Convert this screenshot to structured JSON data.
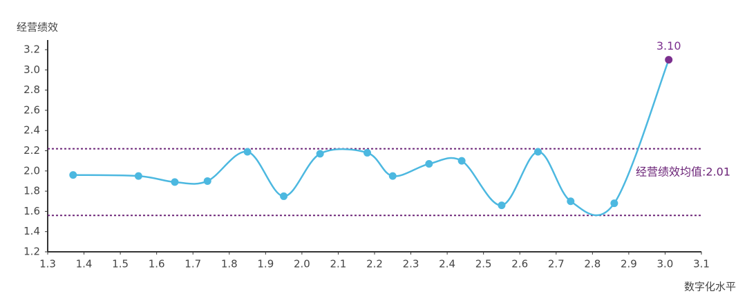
{
  "chart_data": {
    "type": "line",
    "y_label": "经营绩效",
    "x_label": "数字化水平",
    "x": [
      1.37,
      1.55,
      1.65,
      1.74,
      1.85,
      1.95,
      2.05,
      2.18,
      2.25,
      2.35,
      2.44,
      2.55,
      2.65,
      2.74,
      2.86,
      3.01
    ],
    "series": [
      {
        "color": "#4cb8e0",
        "highlight_color": "#7b2f8e",
        "values": [
          1.96,
          1.95,
          1.89,
          1.9,
          2.19,
          1.75,
          2.17,
          2.18,
          1.95,
          2.07,
          2.1,
          1.66,
          2.19,
          1.7,
          1.68,
          3.1
        ],
        "value_labels": [
          null,
          null,
          null,
          null,
          null,
          null,
          null,
          null,
          null,
          null,
          null,
          null,
          null,
          null,
          null,
          "3.10"
        ]
      }
    ],
    "reference_lines": [
      2.22,
      1.56
    ],
    "reference_color": "#6b2377",
    "annotation": "经营绩效均值:2.01",
    "xlim": [
      1.3,
      3.1
    ],
    "xticks": [
      1.3,
      1.4,
      1.5,
      1.6,
      1.7,
      1.8,
      1.9,
      {
        "value": 2,
        "label": "2.0"
      },
      2.1,
      2.2,
      2.3,
      2.4,
      2.5,
      2.6,
      2.7,
      2.8,
      2.9,
      {
        "value": 3,
        "label": "3.0"
      },
      3.1
    ],
    "ylim": [
      1.2,
      3.2
    ],
    "yticks": [
      1.2,
      1.4,
      1.6,
      1.8,
      {
        "value": 2,
        "label": "2.0"
      },
      2.2,
      2.4,
      2.6,
      2.8,
      {
        "value": 3,
        "label": "3.0"
      },
      3.2
    ]
  }
}
